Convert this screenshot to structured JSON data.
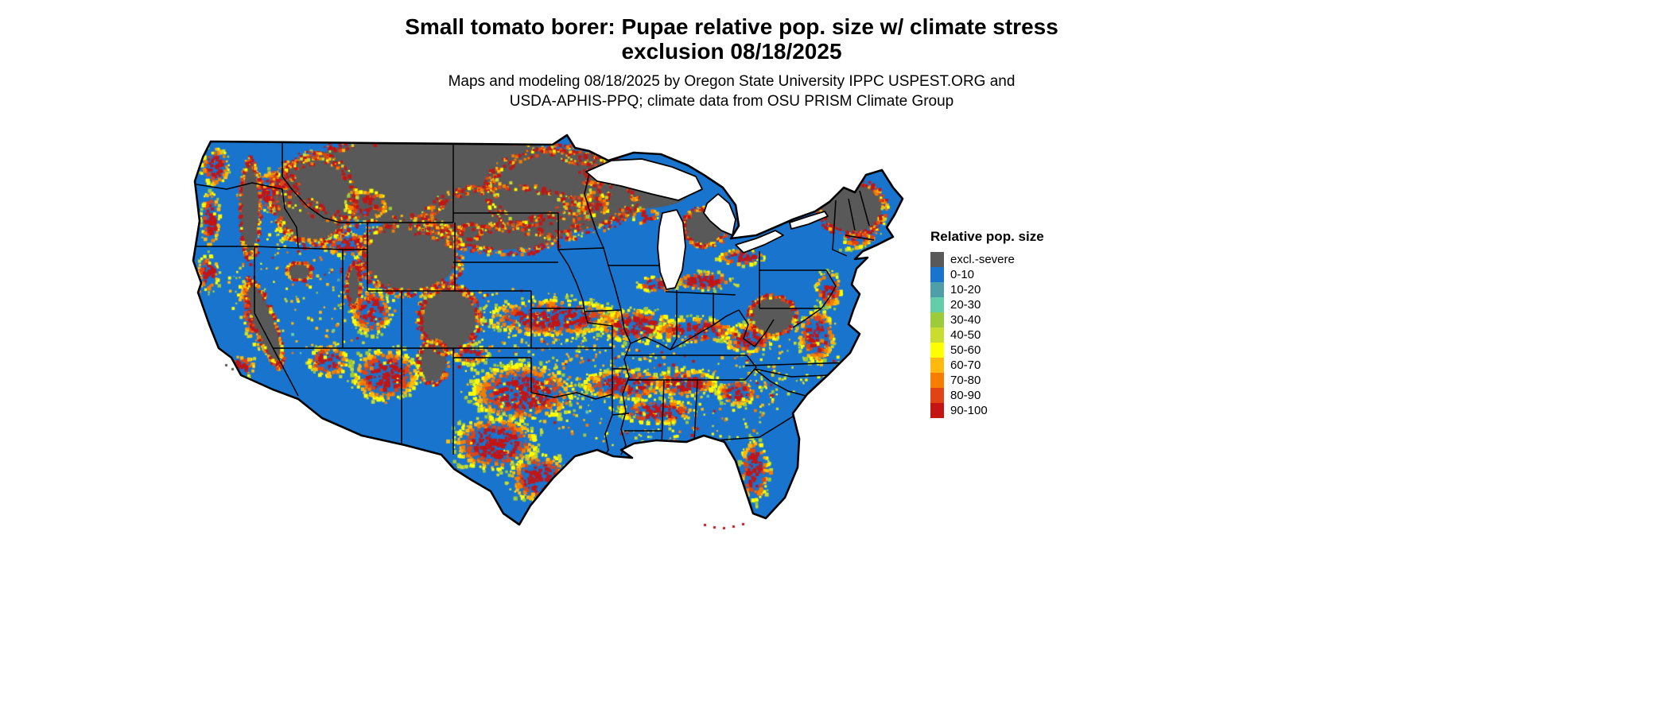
{
  "page": {
    "background": "#ffffff"
  },
  "header": {
    "title_line1": "Small tomato borer: Pupae relative pop. size w/ climate stress",
    "title_line2": "exclusion 08/18/2025",
    "subtitle_line1": "Maps and modeling 08/18/2025 by Oregon State University IPPC USPEST.ORG and",
    "subtitle_line2": "USDA-APHIS-PPQ; climate data from OSU PRISM Climate Group"
  },
  "map": {
    "region": "Continental United States",
    "water_color": "#ffffff",
    "border_color": "#000000"
  },
  "legend": {
    "title": "Relative pop. size",
    "entries": [
      {
        "label": "excl.-severe",
        "color": "#595959"
      },
      {
        "label": "0-10",
        "color": "#1874CD"
      },
      {
        "label": "10-20",
        "color": "#4E9FA8"
      },
      {
        "label": "20-30",
        "color": "#66CDAA"
      },
      {
        "label": "30-40",
        "color": "#9CCB3B"
      },
      {
        "label": "40-50",
        "color": "#C9DC30"
      },
      {
        "label": "50-60",
        "color": "#FFFF00"
      },
      {
        "label": "60-70",
        "color": "#FFB90F"
      },
      {
        "label": "70-80",
        "color": "#F57D00"
      },
      {
        "label": "80-90",
        "color": "#E04414"
      },
      {
        "label": "90-100",
        "color": "#C41414"
      }
    ]
  }
}
